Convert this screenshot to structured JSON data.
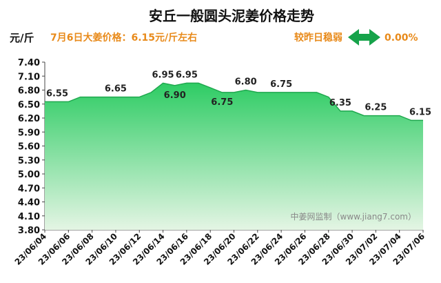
{
  "chart_data": {
    "type": "area",
    "title": "安丘一般圆头泥姜价格走势",
    "ylabel": "元/斤",
    "ylim": [
      3.8,
      7.4
    ],
    "yticks": [
      "7.40",
      "7.10",
      "6.80",
      "6.50",
      "6.20",
      "5.90",
      "5.60",
      "5.30",
      "5.00",
      "4.70",
      "4.40",
      "4.10",
      "3.80"
    ],
    "xticks": [
      "23/06/04",
      "23/06/06",
      "23/06/08",
      "23/06/10",
      "23/06/12",
      "23/06/14",
      "23/06/16",
      "23/06/18",
      "23/06/20",
      "23/06/22",
      "23/06/24",
      "23/06/26",
      "23/06/28",
      "23/06/30",
      "23/07/02",
      "23/07/04",
      "23/07/06"
    ],
    "x": [
      "23/06/04",
      "23/06/05",
      "23/06/06",
      "23/06/07",
      "23/06/08",
      "23/06/09",
      "23/06/10",
      "23/06/11",
      "23/06/12",
      "23/06/13",
      "23/06/14",
      "23/06/15",
      "23/06/16",
      "23/06/17",
      "23/06/18",
      "23/06/19",
      "23/06/20",
      "23/06/21",
      "23/06/22",
      "23/06/23",
      "23/06/24",
      "23/06/25",
      "23/06/26",
      "23/06/27",
      "23/06/28",
      "23/06/29",
      "23/06/30",
      "23/07/01",
      "23/07/02",
      "23/07/03",
      "23/07/04",
      "23/07/05",
      "23/07/06"
    ],
    "values": [
      6.55,
      6.55,
      6.55,
      6.65,
      6.65,
      6.65,
      6.65,
      6.65,
      6.65,
      6.75,
      6.95,
      6.9,
      6.95,
      6.95,
      6.85,
      6.75,
      6.75,
      6.8,
      6.75,
      6.75,
      6.75,
      6.75,
      6.75,
      6.75,
      6.65,
      6.35,
      6.35,
      6.25,
      6.25,
      6.25,
      6.25,
      6.15,
      6.15
    ],
    "data_labels": [
      {
        "x": "23/06/04",
        "text": "6.55"
      },
      {
        "x": "23/06/10",
        "text": "6.65"
      },
      {
        "x": "23/06/14",
        "text": "6.95"
      },
      {
        "x": "23/06/15",
        "text": "6.90"
      },
      {
        "x": "23/06/16",
        "text": "6.95"
      },
      {
        "x": "23/06/19",
        "text": "6.75"
      },
      {
        "x": "23/06/21",
        "text": "6.80"
      },
      {
        "x": "23/06/24",
        "text": "6.75"
      },
      {
        "x": "23/06/29",
        "text": "6.35"
      },
      {
        "x": "23/07/02",
        "text": "6.25"
      },
      {
        "x": "23/07/06",
        "text": "6.15"
      }
    ],
    "fill_color_top": "#2ecc64",
    "fill_color_bottom": "#e4f5e4",
    "grid": false,
    "legend": "none"
  },
  "header": {
    "unit": "元/斤",
    "price_note": "7月6日大姜价格：6.15元/斤左右",
    "compare_label": "较昨日稳弱",
    "change": "0.00%",
    "arrow_icon": "double-arrow-icon",
    "arrow_color": "#16a34a"
  },
  "watermark": "中姜网监制（www.jiang7.com）"
}
